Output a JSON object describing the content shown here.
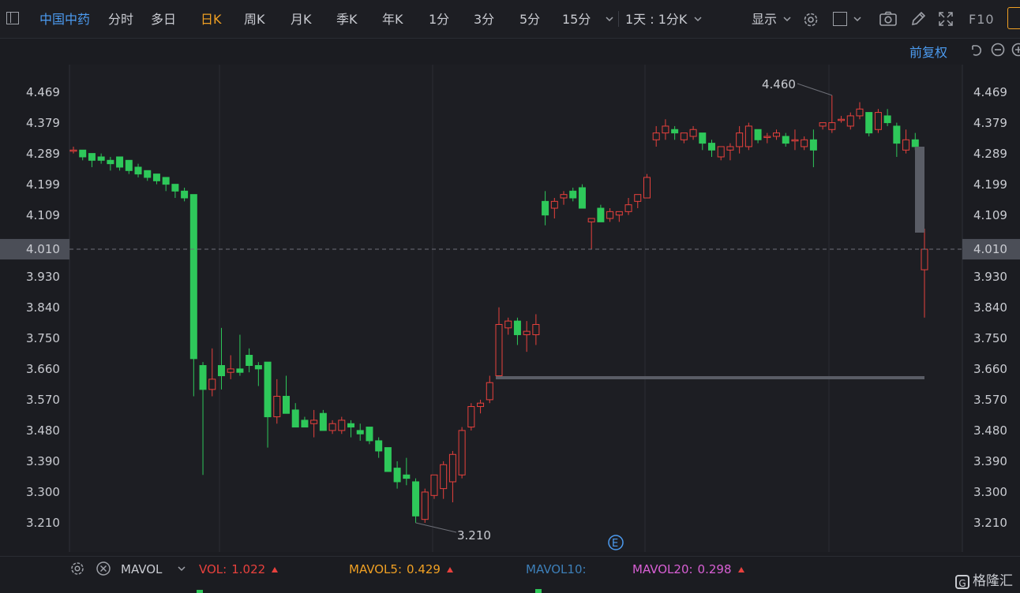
{
  "toolbar": {
    "stock_name": "中国中药",
    "periods": [
      "分时",
      "多日",
      "日K",
      "周K",
      "月K",
      "季K",
      "年K",
      "1分",
      "3分",
      "5分",
      "15分"
    ],
    "active_period": "日K",
    "interval_label": "1天 : 1分K",
    "display_label": "显示",
    "f10_label": "F10"
  },
  "adjust_label": "前复权",
  "chart_data": {
    "type": "candlestick",
    "y_ticks": [
      "4.469",
      "4.379",
      "4.289",
      "4.199",
      "4.109",
      "4.010",
      "3.930",
      "3.840",
      "3.750",
      "3.660",
      "3.570",
      "3.480",
      "3.390",
      "3.300",
      "3.210"
    ],
    "current_price": "4.010",
    "max_label": "4.460",
    "min_label": "3.210",
    "event_marker": "E",
    "candles": [
      [
        4.3,
        4.31,
        4.29,
        4.3
      ],
      [
        4.3,
        4.3,
        4.27,
        4.28
      ],
      [
        4.29,
        4.29,
        4.25,
        4.27
      ],
      [
        4.28,
        4.29,
        4.26,
        4.27
      ],
      [
        4.27,
        4.28,
        4.24,
        4.26
      ],
      [
        4.28,
        4.28,
        4.24,
        4.25
      ],
      [
        4.27,
        4.27,
        4.23,
        4.24
      ],
      [
        4.25,
        4.26,
        4.22,
        4.23
      ],
      [
        4.24,
        4.24,
        4.21,
        4.22
      ],
      [
        4.23,
        4.23,
        4.2,
        4.21
      ],
      [
        4.22,
        4.22,
        4.18,
        4.2
      ],
      [
        4.2,
        4.2,
        4.16,
        4.18
      ],
      [
        4.18,
        4.19,
        4.15,
        4.16
      ],
      [
        4.17,
        4.17,
        3.58,
        3.69
      ],
      [
        3.67,
        3.68,
        3.35,
        3.6
      ],
      [
        3.6,
        3.72,
        3.58,
        3.63
      ],
      [
        3.67,
        3.78,
        3.6,
        3.64
      ],
      [
        3.65,
        3.7,
        3.63,
        3.66
      ],
      [
        3.66,
        3.76,
        3.64,
        3.65
      ],
      [
        3.7,
        3.72,
        3.65,
        3.67
      ],
      [
        3.67,
        3.68,
        3.61,
        3.66
      ],
      [
        3.68,
        3.68,
        3.43,
        3.52
      ],
      [
        3.52,
        3.63,
        3.5,
        3.58
      ],
      [
        3.58,
        3.64,
        3.54,
        3.53
      ],
      [
        3.54,
        3.56,
        3.49,
        3.49
      ],
      [
        3.51,
        3.52,
        3.49,
        3.49
      ],
      [
        3.5,
        3.54,
        3.46,
        3.51
      ],
      [
        3.53,
        3.54,
        3.48,
        3.48
      ],
      [
        3.48,
        3.51,
        3.47,
        3.5
      ],
      [
        3.48,
        3.52,
        3.47,
        3.51
      ],
      [
        3.5,
        3.51,
        3.46,
        3.49
      ],
      [
        3.48,
        3.5,
        3.45,
        3.47
      ],
      [
        3.49,
        3.49,
        3.44,
        3.45
      ],
      [
        3.45,
        3.46,
        3.4,
        3.42
      ],
      [
        3.43,
        3.43,
        3.36,
        3.36
      ],
      [
        3.37,
        3.39,
        3.31,
        3.33
      ],
      [
        3.35,
        3.4,
        3.32,
        3.34
      ],
      [
        3.33,
        3.34,
        3.21,
        3.23
      ],
      [
        3.22,
        3.31,
        3.21,
        3.3
      ],
      [
        3.29,
        3.35,
        3.28,
        3.35
      ],
      [
        3.31,
        3.39,
        3.28,
        3.38
      ],
      [
        3.33,
        3.42,
        3.27,
        3.41
      ],
      [
        3.35,
        3.49,
        3.34,
        3.48
      ],
      [
        3.49,
        3.56,
        3.48,
        3.55
      ],
      [
        3.55,
        3.57,
        3.53,
        3.56
      ],
      [
        3.57,
        3.64,
        3.56,
        3.62
      ],
      [
        3.64,
        3.84,
        3.63,
        3.79
      ],
      [
        3.78,
        3.81,
        3.76,
        3.8
      ],
      [
        3.8,
        3.81,
        3.73,
        3.76
      ],
      [
        3.76,
        3.8,
        3.71,
        3.77
      ],
      [
        3.76,
        3.82,
        3.73,
        3.79
      ],
      [
        4.15,
        4.18,
        4.08,
        4.11
      ],
      [
        4.13,
        4.16,
        4.1,
        4.15
      ],
      [
        4.16,
        4.18,
        4.14,
        4.17
      ],
      [
        4.18,
        4.19,
        4.15,
        4.16
      ],
      [
        4.19,
        4.2,
        4.13,
        4.13
      ],
      [
        4.09,
        4.09,
        4.01,
        4.1
      ],
      [
        4.13,
        4.14,
        4.09,
        4.09
      ],
      [
        4.1,
        4.13,
        4.09,
        4.12
      ],
      [
        4.11,
        4.12,
        4.09,
        4.12
      ],
      [
        4.12,
        4.16,
        4.11,
        4.14
      ],
      [
        4.15,
        4.17,
        4.13,
        4.17
      ],
      [
        4.16,
        4.23,
        4.16,
        4.22
      ],
      [
        4.33,
        4.37,
        4.31,
        4.35
      ],
      [
        4.35,
        4.39,
        4.33,
        4.37
      ],
      [
        4.36,
        4.37,
        4.33,
        4.35
      ],
      [
        4.33,
        4.35,
        4.32,
        4.35
      ],
      [
        4.34,
        4.37,
        4.33,
        4.36
      ],
      [
        4.35,
        4.35,
        4.3,
        4.32
      ],
      [
        4.32,
        4.33,
        4.28,
        4.3
      ],
      [
        4.28,
        4.31,
        4.27,
        4.31
      ],
      [
        4.3,
        4.32,
        4.27,
        4.31
      ],
      [
        4.31,
        4.37,
        4.29,
        4.35
      ],
      [
        4.31,
        4.38,
        4.3,
        4.37
      ],
      [
        4.36,
        4.36,
        4.32,
        4.33
      ],
      [
        4.34,
        4.35,
        4.32,
        4.34
      ],
      [
        4.34,
        4.36,
        4.33,
        4.35
      ],
      [
        4.34,
        4.35,
        4.31,
        4.32
      ],
      [
        4.33,
        4.36,
        4.3,
        4.33
      ],
      [
        4.31,
        4.34,
        4.3,
        4.33
      ],
      [
        4.33,
        4.36,
        4.25,
        4.3
      ],
      [
        4.37,
        4.38,
        4.36,
        4.38
      ],
      [
        4.36,
        4.46,
        4.35,
        4.38
      ],
      [
        4.39,
        4.4,
        4.38,
        4.39
      ],
      [
        4.37,
        4.41,
        4.36,
        4.4
      ],
      [
        4.4,
        4.44,
        4.39,
        4.42
      ],
      [
        4.41,
        4.41,
        4.34,
        4.35
      ],
      [
        4.36,
        4.42,
        4.35,
        4.41
      ],
      [
        4.4,
        4.42,
        4.37,
        4.38
      ],
      [
        4.37,
        4.38,
        4.28,
        4.32
      ],
      [
        4.3,
        4.36,
        4.29,
        4.33
      ],
      [
        4.33,
        4.35,
        4.3,
        4.31
      ],
      [
        3.95,
        4.07,
        3.81,
        4.01
      ]
    ]
  },
  "volume_bar": {
    "title": "MAVOL",
    "vol_label": "VOL:",
    "vol_value": "1.022",
    "mavol5_label": "MAVOL5:",
    "mavol5_value": "0.429",
    "mavol10_label": "MAVOL10:",
    "mavol20_label": "MAVOL20:",
    "mavol20_value": "0.298"
  },
  "logo": {
    "mark": "G",
    "text": "格隆汇"
  },
  "colors": {
    "up": "#e8413d",
    "down": "#2ec85a",
    "accent": "#4c9bf0",
    "active": "#f0a023",
    "mavol5": "#f0a023",
    "mavol10": "#3d7fb8",
    "mavol20": "#d85fd4"
  }
}
